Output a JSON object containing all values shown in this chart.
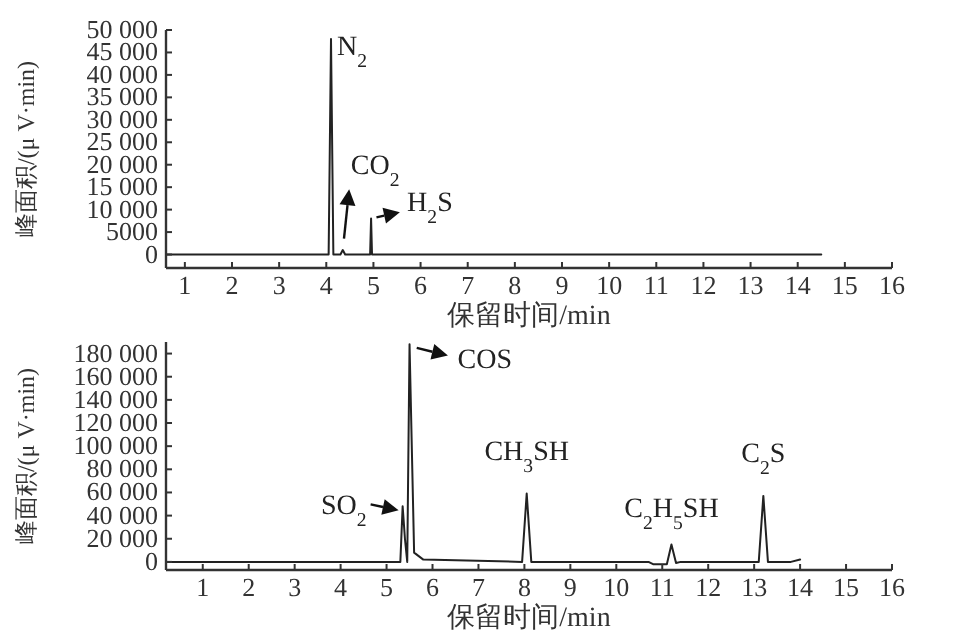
{
  "chart_data": [
    {
      "type": "line",
      "xlabel": "保留时间/min",
      "ylabel": "峰面积/(μ V·min)",
      "xlim": [
        0.6,
        16
      ],
      "xticks": [
        1,
        2,
        3,
        4,
        5,
        6,
        7,
        8,
        9,
        10,
        11,
        12,
        13,
        14,
        15,
        16
      ],
      "ylim": [
        -3000,
        50000
      ],
      "yticks": [
        {
          "value": 0,
          "label": "0"
        },
        5000,
        {
          "value": 10000,
          "label": "10 000"
        },
        {
          "value": 15000,
          "label": "15 000"
        },
        {
          "value": 20000,
          "label": "20 000"
        },
        {
          "value": 25000,
          "label": "25 000"
        },
        {
          "value": 30000,
          "label": "30 000"
        },
        {
          "value": 35000,
          "label": "35 000"
        },
        {
          "value": 40000,
          "label": "40 000"
        },
        {
          "value": 45000,
          "label": "45 000"
        },
        {
          "value": 50000,
          "label": "50 000"
        }
      ],
      "series": [
        {
          "color": "#222222",
          "x": [
            0.6,
            4.05,
            4.1,
            4.15,
            4.3,
            4.35,
            4.4,
            4.93,
            4.95,
            4.97,
            14.5
          ],
          "values": [
            0,
            0,
            48000,
            0,
            0,
            1000,
            0,
            0,
            8000,
            0,
            0
          ]
        }
      ],
      "annotations": [
        {
          "text": "N$_{2}$",
          "x": 4.1,
          "y": 48000
        },
        {
          "text": "CO$_{2}$",
          "x": 4.35,
          "y": 1000
        },
        {
          "text": "H$_{2}$S",
          "x": 4.95,
          "y": 8000
        }
      ]
    },
    {
      "type": "line",
      "xlabel": "保留时间/min",
      "ylabel": "峰面积/(μ V·min)",
      "xlim": [
        0.2,
        16
      ],
      "xticks": [
        1,
        2,
        3,
        4,
        5,
        6,
        7,
        8,
        9,
        10,
        11,
        12,
        13,
        14,
        15,
        16
      ],
      "ylim": [
        -7000,
        190000
      ],
      "yticks": [
        {
          "value": 0,
          "label": "0"
        },
        {
          "value": 20000,
          "label": "20 000"
        },
        {
          "value": 40000,
          "label": "40 000"
        },
        {
          "value": 60000,
          "label": "60 000"
        },
        {
          "value": 80000,
          "label": "80 000"
        },
        {
          "value": 100000,
          "label": "100 000"
        },
        {
          "value": 120000,
          "label": "120 000"
        },
        {
          "value": 140000,
          "label": "140 000"
        },
        {
          "value": 160000,
          "label": "160 000"
        },
        {
          "value": 180000,
          "label": "180 000"
        }
      ],
      "series": [
        {
          "color": "#222222",
          "x": [
            0.2,
            5.3,
            5.35,
            5.4,
            5.45,
            5.5,
            5.6,
            5.8,
            7.95,
            8.05,
            8.15,
            10.7,
            10.8,
            11.1,
            11.2,
            11.3,
            11.4,
            13.1,
            13.2,
            13.3,
            13.8,
            14.0
          ],
          "values": [
            0,
            0,
            48000,
            20000,
            0,
            188000,
            8000,
            2000,
            0,
            59000,
            0,
            0,
            -2000,
            -2000,
            15000,
            -1000,
            0,
            0,
            57000,
            0,
            0,
            2000
          ]
        }
      ],
      "annotations": [
        {
          "text": "SO$_{2}$",
          "x": 5.35,
          "y": 48000
        },
        {
          "text": "COS",
          "x": 5.5,
          "y": 188000
        },
        {
          "text": "CH$_{3}$SH",
          "x": 8.05,
          "y": 59000
        },
        {
          "text": "C$_{2}$H$_{5}$SH",
          "x": 11.2,
          "y": 15000
        },
        {
          "text": "C$_{2}$S",
          "x": 13.2,
          "y": 57000
        }
      ]
    }
  ]
}
